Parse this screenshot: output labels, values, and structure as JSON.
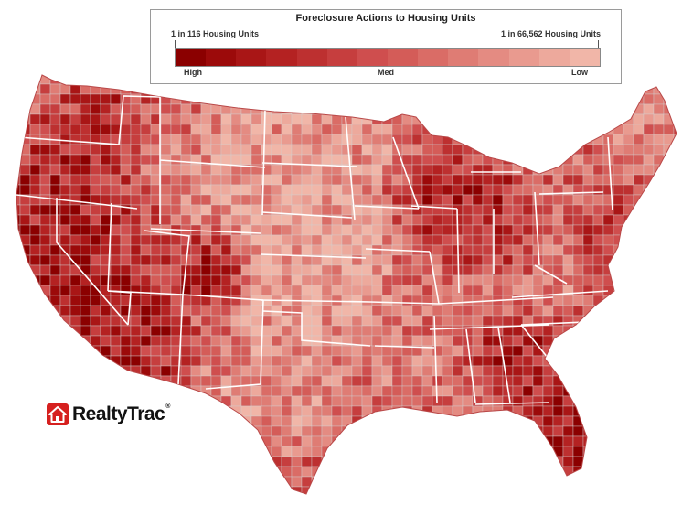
{
  "legend": {
    "title": "Foreclosure Actions to Housing Units",
    "high_end_label": "1 in 116 Housing Units",
    "low_end_label": "1 in 66,562 Housing Units",
    "scale_high": "High",
    "scale_med": "Med",
    "scale_low": "Low",
    "colors": [
      "#8b0000",
      "#9c0a0a",
      "#a91616",
      "#b42222",
      "#bd3030",
      "#c63e3e",
      "#cf4e4e",
      "#d45c58",
      "#da6c66",
      "#df7c74",
      "#e48b82",
      "#e99a8f",
      "#eda99c",
      "#f1b6a8"
    ]
  },
  "logo": {
    "text": "RealtyTrac",
    "registered": "®",
    "brand_color": "#d6201f"
  },
  "map": {
    "boundary_color": "#ffffff",
    "county_line_color": "#cfcfcf"
  }
}
